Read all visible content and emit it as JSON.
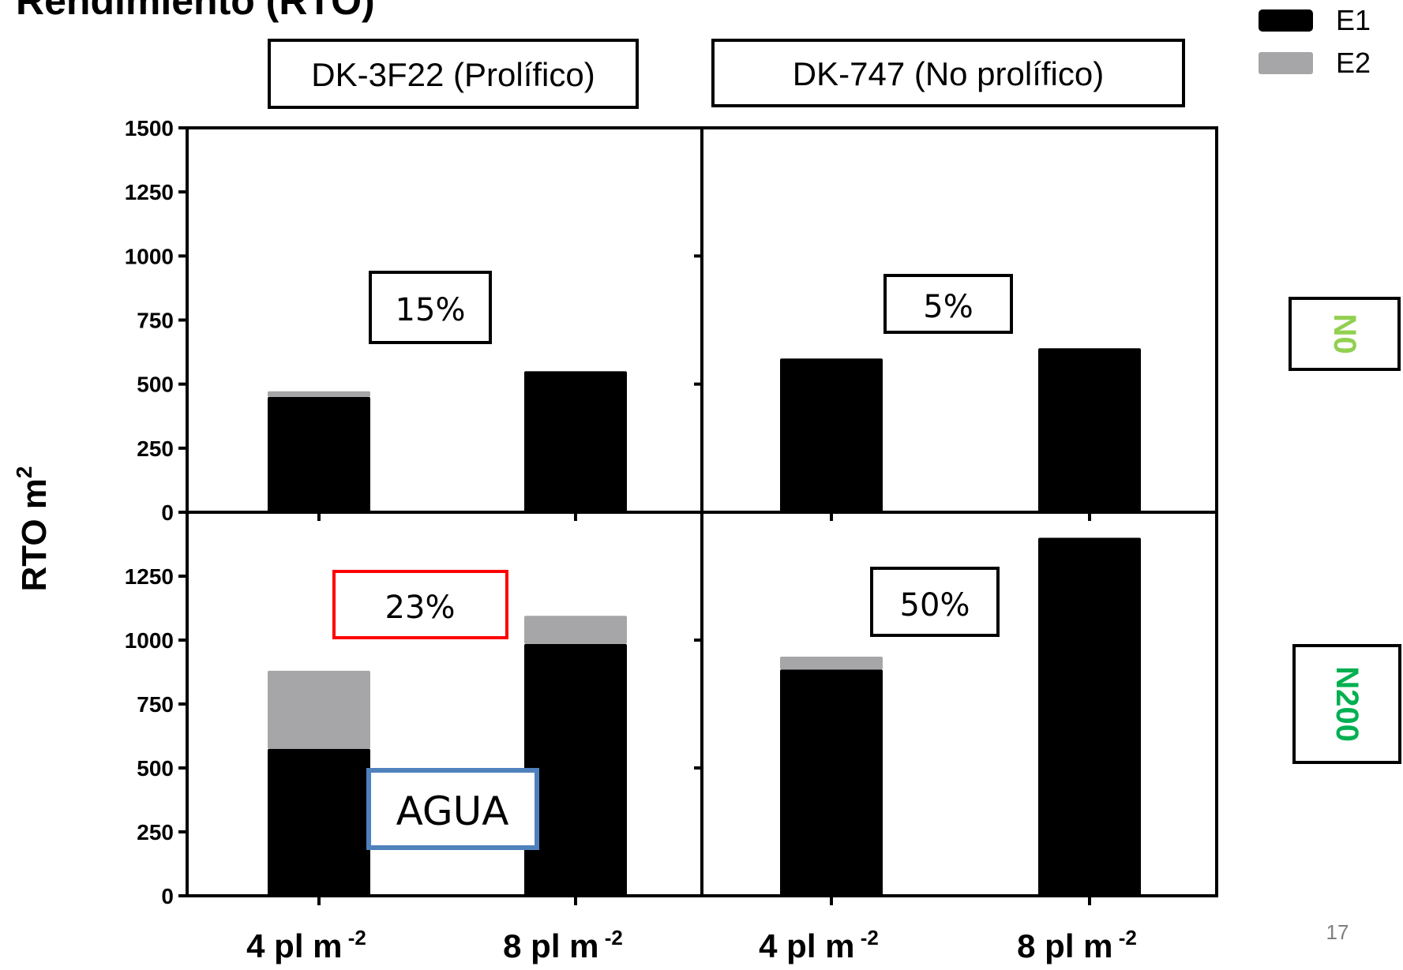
{
  "slide": {
    "title": "Rendimiento (RTO)",
    "page_number": "17"
  },
  "legend": [
    {
      "label": "E1",
      "color": "#000000"
    },
    {
      "label": "E2",
      "color": "#a6a6a8"
    }
  ],
  "hybrids": {
    "left": "DK-3F22 (Prolífico)",
    "right": "DK-747 (No prolífico)"
  },
  "nitrogen": {
    "top": {
      "label": "N0",
      "color": "#92d050"
    },
    "bottom": {
      "label": "N200",
      "color": "#00b050"
    }
  },
  "axis": {
    "ylabel": "RTO m",
    "ylabel_sup": "2",
    "x_ticks": [
      {
        "base": "4 pl m",
        "sup": "-2"
      },
      {
        "base": "8 pl m",
        "sup": "-2"
      },
      {
        "base": "4 pl m",
        "sup": "-2"
      },
      {
        "base": "8 pl m",
        "sup": "-2"
      }
    ]
  },
  "annotations": {
    "top_left": "15%",
    "top_right": "5%",
    "bottom_left": "23%",
    "bottom_right": "50%",
    "agua": "AGUA"
  },
  "chart_data": {
    "type": "bar",
    "stacked": true,
    "series": [
      {
        "name": "E1",
        "color": "#000000"
      },
      {
        "name": "E2",
        "color": "#a6a6a8"
      }
    ],
    "panels": [
      {
        "hybrid": "DK-3F22 (Prolífico)",
        "nitrogen": "N0",
        "categories": [
          "4 pl m -2",
          "8 pl m -2"
        ],
        "E1": [
          450,
          550
        ],
        "E2": [
          22,
          0
        ],
        "ylim": [
          0,
          1500
        ],
        "yticks": [
          0,
          250,
          500,
          750,
          1000,
          1250,
          1500
        ]
      },
      {
        "hybrid": "DK-747 (No prolífico)",
        "nitrogen": "N0",
        "categories": [
          "4 pl m -2",
          "8 pl m -2"
        ],
        "E1": [
          600,
          640
        ],
        "E2": [
          0,
          0
        ],
        "ylim": [
          0,
          1500
        ]
      },
      {
        "hybrid": "DK-3F22 (Prolífico)",
        "nitrogen": "N200",
        "categories": [
          "4 pl m -2",
          "8 pl m -2"
        ],
        "E1": [
          575,
          985
        ],
        "E2": [
          305,
          110
        ],
        "ylim": [
          0,
          1500
        ],
        "yticks": [
          0,
          250,
          500,
          750,
          1000,
          1250
        ]
      },
      {
        "hybrid": "DK-747 (No prolífico)",
        "nitrogen": "N200",
        "categories": [
          "4 pl m -2",
          "8 pl m -2"
        ],
        "E1": [
          885,
          1400
        ],
        "E2": [
          50,
          0
        ],
        "ylim": [
          0,
          1500
        ]
      }
    ]
  }
}
